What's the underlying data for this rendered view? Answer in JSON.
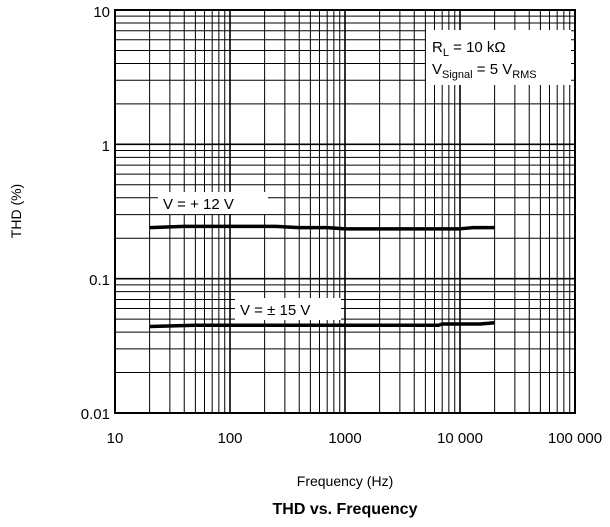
{
  "chart_data": {
    "type": "line",
    "title": "THD vs. Frequency",
    "xlabel": "Frequency (Hz)",
    "ylabel": "THD (%)",
    "x_scale": "log",
    "y_scale": "log",
    "xlim": [
      10,
      100000
    ],
    "ylim": [
      0.01,
      10
    ],
    "grid": true,
    "x_tick_labels": [
      "10",
      "100",
      "1000",
      "10 000",
      "100 000"
    ],
    "y_tick_labels": [
      "0.01",
      "0.1",
      "1",
      "10"
    ],
    "conditions": {
      "line1": {
        "prefix": "R",
        "sub": "L",
        "suffix": " = 10 kΩ"
      },
      "line2": {
        "prefix": "V",
        "sub": "Signal",
        "mid": " = 5 V",
        "sub2": "RMS"
      }
    },
    "series": [
      {
        "name": "V = + 12 V",
        "color": "#000000",
        "x": [
          20,
          40,
          100,
          250,
          400,
          700,
          1000,
          3000,
          10000,
          13000,
          20000
        ],
        "y": [
          0.24,
          0.245,
          0.245,
          0.245,
          0.24,
          0.24,
          0.235,
          0.235,
          0.235,
          0.24,
          0.24
        ]
      },
      {
        "name": "V = ± 15 V",
        "color": "#000000",
        "x": [
          20,
          50,
          100,
          300,
          1000,
          3000,
          6500,
          7000,
          15000,
          20000
        ],
        "y": [
          0.044,
          0.045,
          0.045,
          0.045,
          0.045,
          0.045,
          0.045,
          0.046,
          0.046,
          0.047
        ]
      }
    ]
  }
}
